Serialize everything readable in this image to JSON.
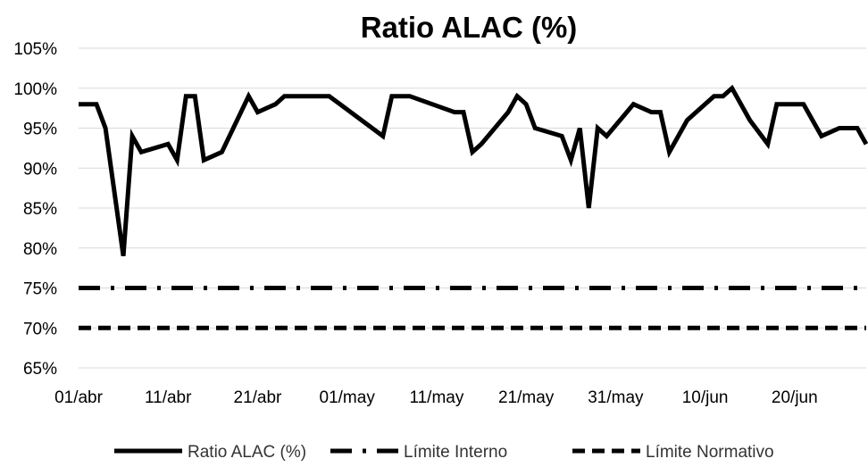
{
  "chart_data": {
    "type": "line",
    "title": "Ratio ALAC (%)",
    "xlabel": "",
    "ylabel": "",
    "ylim": [
      65,
      105
    ],
    "y_ticks": [
      65,
      70,
      75,
      80,
      85,
      90,
      95,
      100,
      105
    ],
    "y_tick_labels": [
      "65%",
      "70%",
      "75%",
      "80%",
      "85%",
      "90%",
      "95%",
      "100%",
      "105%"
    ],
    "x_domain_days": [
      0,
      88
    ],
    "x_ticks": [
      0,
      10,
      20,
      30,
      40,
      50,
      60,
      70,
      80
    ],
    "x_tick_labels": [
      "01/abr",
      "11/abr",
      "21/abr",
      "01/may",
      "11/may",
      "21/may",
      "31/may",
      "10/jun",
      "20/jun"
    ],
    "grid": true,
    "legend_position": "bottom",
    "series": [
      {
        "name": "Ratio ALAC (%)",
        "color": "#000000",
        "style": "solid",
        "x": [
          0,
          2,
          3,
          5,
          6,
          7,
          10,
          11,
          12,
          13,
          14,
          16,
          19,
          20,
          21,
          22,
          23,
          25,
          28,
          34,
          35,
          37,
          42,
          43,
          44,
          45,
          48,
          49,
          50,
          51,
          54,
          55,
          56,
          57,
          58,
          59,
          62,
          64,
          65,
          66,
          68,
          71,
          72,
          73,
          75,
          77,
          78,
          80,
          81,
          83,
          85,
          87,
          88
        ],
        "y": [
          98,
          98,
          95,
          79,
          94,
          92,
          93,
          91,
          99,
          99,
          91,
          92,
          99,
          97,
          97.5,
          98,
          99,
          99,
          99,
          94,
          99,
          99,
          97,
          97,
          92,
          93,
          97,
          99,
          98,
          95,
          94,
          91,
          95,
          85,
          95,
          94,
          98,
          97,
          97,
          92,
          96,
          99,
          99,
          100,
          96,
          93,
          98,
          98,
          98,
          94,
          95,
          95,
          93
        ]
      },
      {
        "name": "Límite Interno",
        "color": "#000000",
        "style": "dash-dot",
        "x": [
          0,
          88
        ],
        "y": [
          75,
          75
        ]
      },
      {
        "name": "Límite Normativo",
        "color": "#000000",
        "style": "dashed",
        "x": [
          0,
          88
        ],
        "y": [
          70,
          70
        ]
      }
    ]
  }
}
